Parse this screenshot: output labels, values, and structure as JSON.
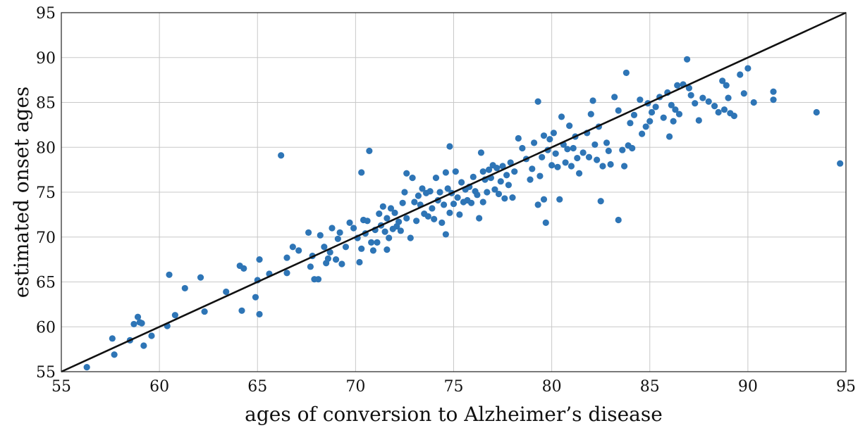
{
  "chart_data": {
    "type": "scatter",
    "title": "",
    "xlabel": "ages of conversion to Alzheimer’s disease",
    "ylabel": "estimated onset ages",
    "xlim": [
      55,
      95
    ],
    "ylim": [
      55,
      95
    ],
    "xticks": [
      "55",
      "60",
      "65",
      "70",
      "75",
      "80",
      "85",
      "90",
      "95"
    ],
    "yticks": [
      "55",
      "60",
      "65",
      "70",
      "75",
      "80",
      "85",
      "90",
      "95"
    ],
    "grid": true,
    "legend": "none",
    "marker_color": "#2e75b6",
    "line_color": "#111111",
    "reference_line": {
      "x": [
        55,
        95
      ],
      "y": [
        55,
        95
      ]
    },
    "points": [
      [
        56.3,
        55.5
      ],
      [
        57.6,
        58.7
      ],
      [
        57.7,
        56.9
      ],
      [
        58.5,
        58.5
      ],
      [
        58.7,
        60.3
      ],
      [
        58.9,
        61.1
      ],
      [
        59.0,
        60.5
      ],
      [
        59.1,
        60.4
      ],
      [
        59.2,
        57.9
      ],
      [
        59.6,
        59.0
      ],
      [
        60.4,
        60.1
      ],
      [
        60.5,
        65.8
      ],
      [
        60.8,
        61.3
      ],
      [
        61.3,
        64.3
      ],
      [
        62.1,
        65.5
      ],
      [
        62.3,
        61.7
      ],
      [
        63.4,
        63.9
      ],
      [
        64.1,
        66.8
      ],
      [
        64.2,
        61.8
      ],
      [
        64.3,
        66.5
      ],
      [
        64.9,
        63.3
      ],
      [
        65.0,
        65.2
      ],
      [
        65.1,
        61.4
      ],
      [
        65.1,
        67.5
      ],
      [
        65.6,
        65.9
      ],
      [
        66.2,
        79.1
      ],
      [
        66.5,
        66.0
      ],
      [
        66.5,
        67.7
      ],
      [
        66.8,
        68.9
      ],
      [
        67.1,
        68.5
      ],
      [
        67.6,
        70.5
      ],
      [
        67.7,
        66.7
      ],
      [
        67.8,
        67.9
      ],
      [
        67.9,
        65.3
      ],
      [
        68.1,
        65.3
      ],
      [
        68.2,
        70.2
      ],
      [
        68.4,
        68.9
      ],
      [
        68.5,
        67.1
      ],
      [
        68.6,
        67.6
      ],
      [
        68.7,
        68.3
      ],
      [
        68.8,
        71.0
      ],
      [
        69.0,
        67.5
      ],
      [
        69.1,
        69.8
      ],
      [
        69.2,
        70.5
      ],
      [
        69.3,
        67.0
      ],
      [
        69.5,
        68.9
      ],
      [
        69.7,
        71.6
      ],
      [
        69.9,
        71.0
      ],
      [
        70.1,
        69.9
      ],
      [
        70.2,
        67.2
      ],
      [
        70.3,
        68.7
      ],
      [
        70.3,
        77.2
      ],
      [
        70.4,
        71.9
      ],
      [
        70.5,
        70.4
      ],
      [
        70.6,
        71.8
      ],
      [
        70.7,
        79.6
      ],
      [
        70.8,
        69.4
      ],
      [
        70.9,
        68.5
      ],
      [
        71.0,
        70.8
      ],
      [
        71.1,
        69.4
      ],
      [
        71.2,
        72.6
      ],
      [
        71.3,
        71.3
      ],
      [
        71.4,
        73.4
      ],
      [
        71.5,
        70.6
      ],
      [
        71.6,
        72.1
      ],
      [
        71.6,
        68.6
      ],
      [
        71.7,
        69.9
      ],
      [
        71.8,
        73.2
      ],
      [
        71.9,
        70.9
      ],
      [
        72.0,
        72.7
      ],
      [
        72.1,
        71.2
      ],
      [
        72.2,
        71.7
      ],
      [
        72.3,
        70.7
      ],
      [
        72.4,
        73.8
      ],
      [
        72.5,
        75.0
      ],
      [
        72.6,
        72.1
      ],
      [
        72.6,
        77.1
      ],
      [
        72.8,
        69.9
      ],
      [
        72.9,
        76.6
      ],
      [
        73.0,
        73.9
      ],
      [
        73.1,
        71.8
      ],
      [
        73.2,
        74.6
      ],
      [
        73.3,
        73.6
      ],
      [
        73.4,
        75.4
      ],
      [
        73.5,
        72.6
      ],
      [
        73.6,
        74.9
      ],
      [
        73.7,
        72.3
      ],
      [
        73.8,
        75.1
      ],
      [
        73.9,
        73.2
      ],
      [
        74.0,
        72.0
      ],
      [
        74.1,
        76.6
      ],
      [
        74.2,
        74.1
      ],
      [
        74.3,
        75.0
      ],
      [
        74.4,
        71.6
      ],
      [
        74.5,
        73.6
      ],
      [
        74.6,
        77.2
      ],
      [
        74.6,
        70.3
      ],
      [
        74.7,
        75.4
      ],
      [
        74.8,
        72.7
      ],
      [
        74.8,
        80.1
      ],
      [
        74.9,
        74.9
      ],
      [
        75.0,
        73.7
      ],
      [
        75.1,
        77.3
      ],
      [
        75.2,
        74.4
      ],
      [
        75.3,
        72.5
      ],
      [
        75.4,
        76.1
      ],
      [
        75.5,
        73.9
      ],
      [
        75.6,
        75.3
      ],
      [
        75.7,
        74.1
      ],
      [
        75.8,
        75.6
      ],
      [
        75.9,
        73.8
      ],
      [
        76.0,
        76.7
      ],
      [
        76.1,
        75.1
      ],
      [
        76.2,
        74.7
      ],
      [
        76.3,
        72.1
      ],
      [
        76.4,
        79.4
      ],
      [
        76.5,
        77.3
      ],
      [
        76.5,
        73.9
      ],
      [
        76.6,
        76.4
      ],
      [
        76.7,
        75.0
      ],
      [
        76.8,
        77.5
      ],
      [
        76.9,
        76.6
      ],
      [
        77.0,
        78.0
      ],
      [
        77.1,
        75.3
      ],
      [
        77.2,
        77.7
      ],
      [
        77.3,
        74.8
      ],
      [
        77.4,
        76.2
      ],
      [
        77.5,
        77.9
      ],
      [
        77.6,
        74.3
      ],
      [
        77.7,
        76.9
      ],
      [
        77.8,
        75.8
      ],
      [
        77.9,
        78.3
      ],
      [
        78.0,
        74.4
      ],
      [
        78.1,
        77.3
      ],
      [
        78.3,
        81.0
      ],
      [
        78.5,
        79.9
      ],
      [
        78.7,
        78.7
      ],
      [
        78.9,
        76.4
      ],
      [
        79.0,
        77.6
      ],
      [
        79.1,
        80.5
      ],
      [
        79.3,
        73.6
      ],
      [
        79.3,
        85.1
      ],
      [
        79.4,
        76.8
      ],
      [
        79.5,
        78.9
      ],
      [
        79.6,
        81.3
      ],
      [
        79.6,
        74.2
      ],
      [
        79.7,
        71.6
      ],
      [
        79.8,
        79.7
      ],
      [
        79.9,
        80.9
      ],
      [
        80.0,
        78.0
      ],
      [
        80.1,
        81.6
      ],
      [
        80.2,
        79.3
      ],
      [
        80.3,
        77.8
      ],
      [
        80.4,
        74.2
      ],
      [
        80.5,
        83.4
      ],
      [
        80.6,
        80.3
      ],
      [
        80.7,
        78.3
      ],
      [
        80.8,
        79.8
      ],
      [
        80.9,
        82.4
      ],
      [
        81.0,
        77.9
      ],
      [
        81.1,
        79.9
      ],
      [
        81.2,
        81.2
      ],
      [
        81.3,
        78.8
      ],
      [
        81.4,
        77.1
      ],
      [
        81.6,
        79.4
      ],
      [
        81.8,
        81.6
      ],
      [
        81.9,
        78.9
      ],
      [
        82.0,
        83.7
      ],
      [
        82.1,
        85.2
      ],
      [
        82.2,
        80.3
      ],
      [
        82.3,
        78.6
      ],
      [
        82.4,
        82.3
      ],
      [
        82.5,
        74.0
      ],
      [
        82.6,
        77.9
      ],
      [
        82.8,
        80.5
      ],
      [
        82.9,
        79.6
      ],
      [
        83.0,
        78.1
      ],
      [
        83.2,
        85.6
      ],
      [
        83.4,
        71.9
      ],
      [
        83.4,
        84.1
      ],
      [
        83.6,
        79.7
      ],
      [
        83.7,
        77.9
      ],
      [
        83.8,
        88.3
      ],
      [
        83.9,
        80.2
      ],
      [
        84.0,
        82.7
      ],
      [
        84.1,
        79.9
      ],
      [
        84.2,
        83.6
      ],
      [
        84.5,
        85.3
      ],
      [
        84.6,
        81.5
      ],
      [
        84.8,
        82.3
      ],
      [
        84.9,
        84.9
      ],
      [
        85.0,
        82.9
      ],
      [
        85.1,
        83.9
      ],
      [
        85.3,
        84.5
      ],
      [
        85.5,
        85.6
      ],
      [
        85.7,
        83.3
      ],
      [
        85.9,
        86.1
      ],
      [
        86.0,
        81.2
      ],
      [
        86.1,
        84.7
      ],
      [
        86.2,
        82.9
      ],
      [
        86.3,
        84.2
      ],
      [
        86.4,
        86.9
      ],
      [
        86.5,
        83.7
      ],
      [
        86.7,
        87.0
      ],
      [
        86.9,
        89.8
      ],
      [
        87.0,
        86.6
      ],
      [
        87.1,
        85.8
      ],
      [
        87.3,
        84.9
      ],
      [
        87.5,
        83.0
      ],
      [
        87.7,
        85.5
      ],
      [
        88.0,
        85.1
      ],
      [
        88.3,
        84.6
      ],
      [
        88.5,
        83.9
      ],
      [
        88.7,
        87.4
      ],
      [
        88.8,
        84.2
      ],
      [
        88.9,
        86.9
      ],
      [
        89.0,
        85.5
      ],
      [
        89.1,
        83.8
      ],
      [
        89.3,
        83.5
      ],
      [
        89.6,
        88.1
      ],
      [
        89.8,
        86.0
      ],
      [
        90.0,
        88.8
      ],
      [
        90.3,
        85.0
      ],
      [
        91.3,
        86.2
      ],
      [
        91.3,
        85.3
      ],
      [
        93.5,
        83.9
      ],
      [
        94.7,
        78.2
      ]
    ]
  }
}
